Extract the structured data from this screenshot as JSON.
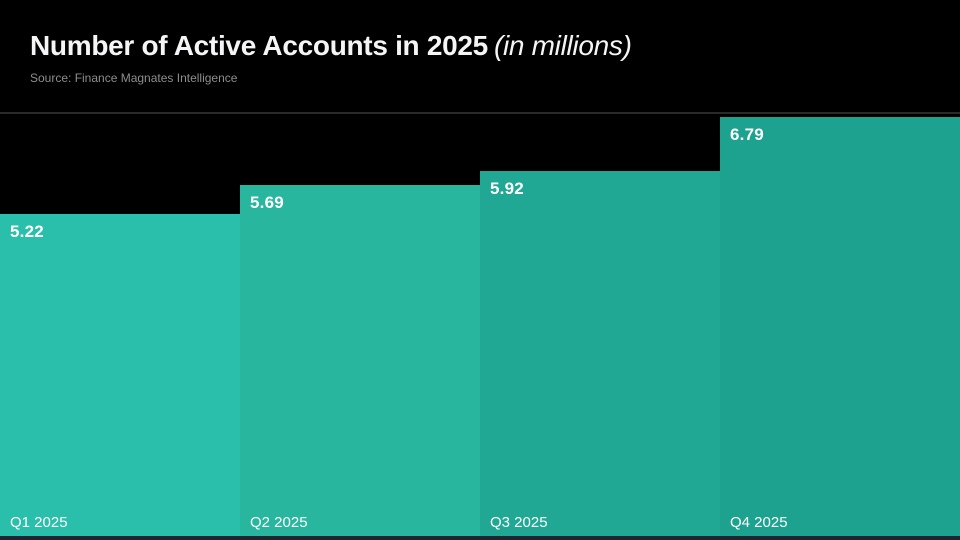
{
  "header": {
    "title": "Number of Active Accounts in 2025",
    "title_suffix": "(in millions)",
    "source": "Source: Finance Magnates Intelligence"
  },
  "chart_data": {
    "type": "bar",
    "title": "Number of Active Accounts in 2025 (in millions)",
    "categories": [
      "Q1 2025",
      "Q2 2025",
      "Q3 2025",
      "Q4 2025"
    ],
    "values": [
      5.22,
      5.69,
      5.92,
      6.79
    ],
    "value_labels": [
      "5.22",
      "5.69",
      "5.92",
      "6.79"
    ],
    "xlabel": "",
    "ylabel": "",
    "ylim": [
      0,
      6.83
    ],
    "grid": false,
    "legend": false,
    "bar_colors": [
      "#2abfaa",
      "#28b69f",
      "#21a894",
      "#1da290"
    ],
    "background_color": "#000000",
    "divider_color": "#2a2a2a",
    "baseline_color": "#1d2630",
    "label_color": "#ffffff"
  }
}
